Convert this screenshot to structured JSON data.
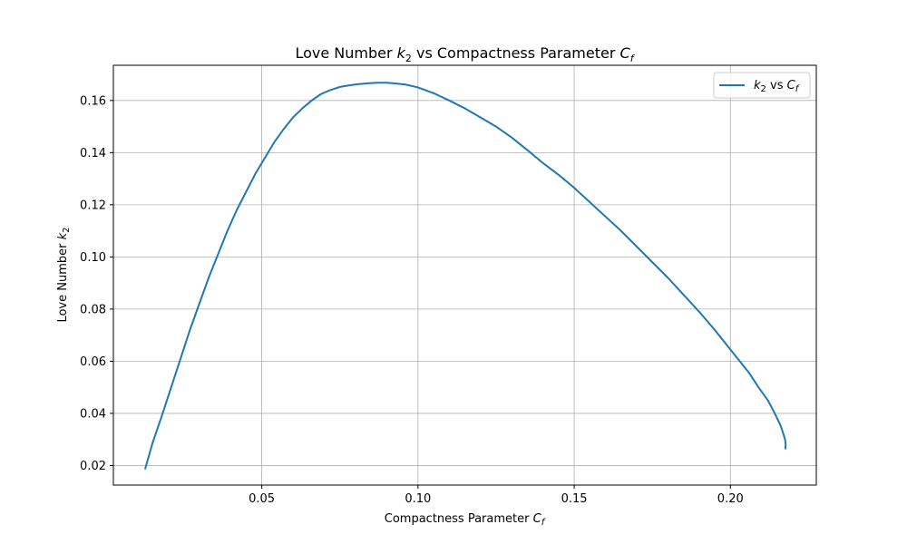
{
  "chart_data": {
    "type": "line",
    "title": {
      "main": "Love Number ",
      "var": "k",
      "sub": "2",
      "mid": " vs Compactness Parameter ",
      "var2": "C",
      "sub2": "f"
    },
    "xlabel": {
      "text": "Compactness Parameter ",
      "var": "C",
      "sub": "f"
    },
    "ylabel": {
      "text": "Love Number ",
      "var": "k",
      "sub": "2"
    },
    "xlim": [
      0.0025,
      0.2275
    ],
    "ylim": [
      0.0125,
      0.1735
    ],
    "xticks": [
      0.05,
      0.1,
      0.15,
      0.2
    ],
    "xtick_labels": [
      "0.05",
      "0.10",
      "0.15",
      "0.20"
    ],
    "yticks": [
      0.02,
      0.04,
      0.06,
      0.08,
      0.1,
      0.12,
      0.14,
      0.16
    ],
    "ytick_labels": [
      "0.02",
      "0.04",
      "0.06",
      "0.08",
      "0.10",
      "0.12",
      "0.14",
      "0.16"
    ],
    "grid": true,
    "legend_position": "top-right",
    "series": [
      {
        "legend": {
          "var": "k",
          "sub": "2",
          "mid": " vs ",
          "var2": "C",
          "sub2": "f"
        },
        "color": "#1f77b4",
        "x": [
          0.0127,
          0.015,
          0.018,
          0.021,
          0.024,
          0.027,
          0.03,
          0.033,
          0.036,
          0.039,
          0.042,
          0.045,
          0.048,
          0.051,
          0.054,
          0.057,
          0.06,
          0.063,
          0.066,
          0.069,
          0.072,
          0.075,
          0.078,
          0.081,
          0.084,
          0.087,
          0.09,
          0.093,
          0.096,
          0.1,
          0.105,
          0.11,
          0.115,
          0.12,
          0.125,
          0.13,
          0.135,
          0.14,
          0.145,
          0.15,
          0.155,
          0.16,
          0.165,
          0.17,
          0.175,
          0.18,
          0.185,
          0.19,
          0.195,
          0.2,
          0.203,
          0.206,
          0.209,
          0.212,
          0.214,
          0.216,
          0.217,
          0.2175,
          0.2177,
          0.2176
        ],
        "y": [
          0.0188,
          0.0285,
          0.039,
          0.05,
          0.061,
          0.072,
          0.082,
          0.092,
          0.101,
          0.11,
          0.118,
          0.125,
          0.132,
          0.138,
          0.144,
          0.149,
          0.1535,
          0.157,
          0.16,
          0.1625,
          0.164,
          0.1652,
          0.1658,
          0.1663,
          0.1666,
          0.1668,
          0.1668,
          0.1665,
          0.1661,
          0.165,
          0.1628,
          0.16,
          0.157,
          0.1535,
          0.15,
          0.1458,
          0.141,
          0.136,
          0.1315,
          0.1265,
          0.121,
          0.1155,
          0.11,
          0.104,
          0.098,
          0.092,
          0.0855,
          0.079,
          0.072,
          0.0645,
          0.06,
          0.0555,
          0.05,
          0.045,
          0.0405,
          0.0355,
          0.032,
          0.03,
          0.028,
          0.0265
        ]
      }
    ]
  }
}
